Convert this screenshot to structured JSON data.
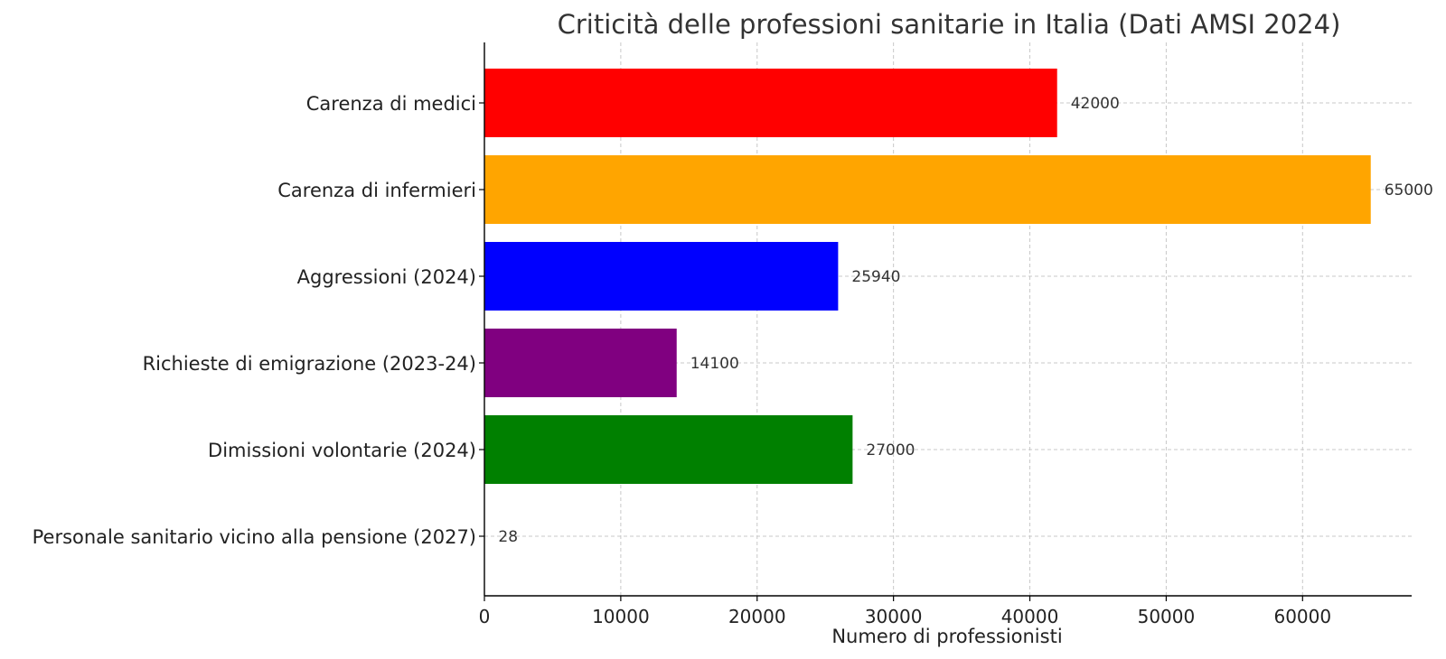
{
  "chart_data": {
    "type": "bar",
    "orientation": "horizontal",
    "title": "Criticità delle professioni sanitarie in Italia (Dati AMSI 2024)",
    "xlabel": "Numero di professionisti",
    "ylabel": "",
    "xlim": [
      0,
      68000
    ],
    "xticks": [
      0,
      10000,
      20000,
      30000,
      40000,
      50000,
      60000
    ],
    "grid": true,
    "categories": [
      "Carenza di medici",
      "Carenza di infermieri",
      "Aggressioni (2024)",
      "Richieste di emigrazione (2023-24)",
      "Dimissioni volontarie (2024)",
      "Personale sanitario vicino alla pensione (2027)"
    ],
    "values": [
      42000,
      65000,
      25940,
      14100,
      27000,
      28
    ],
    "colors": [
      "#ff0000",
      "#ffa500",
      "#0000ff",
      "#800080",
      "#008000",
      "#00bfff"
    ]
  }
}
